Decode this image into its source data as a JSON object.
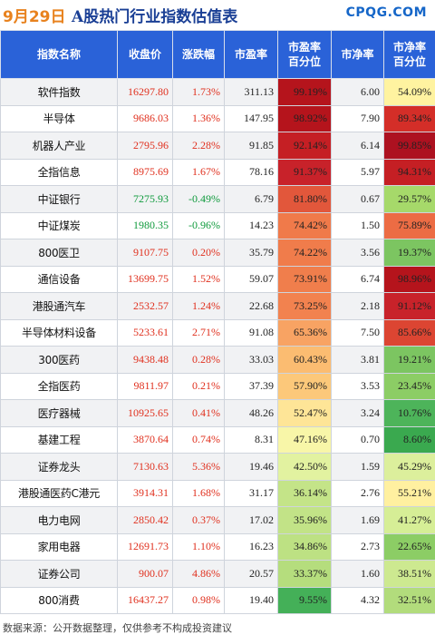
{
  "header": {
    "date": "9月29日",
    "title": "A股热门行业指数估值表",
    "brand": "CPQG.COM"
  },
  "columns": [
    "指数名称",
    "收盘价",
    "涨跌幅",
    "市盈率",
    "市盈率\n百分位",
    "市净率",
    "市净率\n百分位"
  ],
  "colors": {
    "header_bg": "#2a62d8",
    "up": "#e0301e",
    "down": "#0f9a3c",
    "neutral": "#222222"
  },
  "rows": [
    {
      "name": "软件指数",
      "close": "16297.80",
      "change": "1.73%",
      "dir": "up",
      "pe": "311.13",
      "pe_pct": "99.19%",
      "pb": "6.00",
      "pb_pct": "54.09%",
      "pe_color": "#b5141c",
      "pb_color": "#fff3a0"
    },
    {
      "name": "半导体",
      "close": "9686.03",
      "change": "1.36%",
      "dir": "up",
      "pe": "147.95",
      "pe_pct": "98.92%",
      "pb": "7.90",
      "pb_pct": "89.34%",
      "pe_color": "#b5141c",
      "pb_color": "#d42e28"
    },
    {
      "name": "机器人产业",
      "close": "2795.96",
      "change": "2.28%",
      "dir": "up",
      "pe": "91.85",
      "pe_pct": "92.14%",
      "pb": "6.14",
      "pb_pct": "99.85%",
      "pe_color": "#c51f24",
      "pb_color": "#ad1120"
    },
    {
      "name": "全指信息",
      "close": "8975.69",
      "change": "1.67%",
      "dir": "up",
      "pe": "78.16",
      "pe_pct": "91.37%",
      "pb": "5.97",
      "pb_pct": "94.31%",
      "pe_color": "#c8222a",
      "pb_color": "#c51f24"
    },
    {
      "name": "中证银行",
      "close": "7275.93",
      "change": "-0.49%",
      "dir": "down",
      "pe": "6.79",
      "pe_pct": "81.80%",
      "pb": "0.67",
      "pb_pct": "29.57%",
      "pe_color": "#e2573b",
      "pb_color": "#a6d96a"
    },
    {
      "name": "中证煤炭",
      "close": "1980.35",
      "change": "-0.96%",
      "dir": "down",
      "pe": "14.23",
      "pe_pct": "74.42%",
      "pb": "1.50",
      "pb_pct": "75.89%",
      "pe_color": "#f07a4a",
      "pb_color": "#ec6c44"
    },
    {
      "name": "800医卫",
      "close": "9107.75",
      "change": "0.20%",
      "dir": "up",
      "pe": "35.79",
      "pe_pct": "74.22%",
      "pb": "3.56",
      "pb_pct": "19.37%",
      "pe_color": "#f07c4b",
      "pb_color": "#7cc561"
    },
    {
      "name": "通信设备",
      "close": "13699.75",
      "change": "1.52%",
      "dir": "up",
      "pe": "59.07",
      "pe_pct": "73.91%",
      "pb": "6.74",
      "pb_pct": "98.96%",
      "pe_color": "#f07e4c",
      "pb_color": "#b5141c"
    },
    {
      "name": "港股通汽车",
      "close": "2532.57",
      "change": "1.24%",
      "dir": "up",
      "pe": "22.68",
      "pe_pct": "73.25%",
      "pb": "2.18",
      "pb_pct": "91.12%",
      "pe_color": "#f2824f",
      "pb_color": "#c8222a"
    },
    {
      "name": "半导体材料设备",
      "close": "5233.61",
      "change": "2.71%",
      "dir": "up",
      "pe": "91.08",
      "pe_pct": "65.36%",
      "pb": "7.50",
      "pb_pct": "85.66%",
      "pe_color": "#f8a363",
      "pb_color": "#dc4532"
    },
    {
      "name": "300医药",
      "close": "9438.48",
      "change": "0.28%",
      "dir": "up",
      "pe": "33.03",
      "pe_pct": "60.43%",
      "pb": "3.81",
      "pb_pct": "19.21%",
      "pe_color": "#fbbc71",
      "pb_color": "#7cc561"
    },
    {
      "name": "全指医药",
      "close": "9811.97",
      "change": "0.21%",
      "dir": "up",
      "pe": "37.39",
      "pe_pct": "57.90%",
      "pb": "3.53",
      "pb_pct": "23.45%",
      "pe_color": "#fcc87a",
      "pb_color": "#8ccd65"
    },
    {
      "name": "医疗器械",
      "close": "10925.65",
      "change": "0.41%",
      "dir": "up",
      "pe": "48.26",
      "pe_pct": "52.47%",
      "pb": "3.24",
      "pb_pct": "10.76%",
      "pe_color": "#fee597",
      "pb_color": "#4db45a"
    },
    {
      "name": "基建工程",
      "close": "3870.64",
      "change": "0.74%",
      "dir": "up",
      "pe": "8.31",
      "pe_pct": "47.16%",
      "pb": "0.70",
      "pb_pct": "8.60%",
      "pe_color": "#f8f6a8",
      "pb_color": "#3aa94f"
    },
    {
      "name": "证券龙头",
      "close": "7130.63",
      "change": "5.36%",
      "dir": "up",
      "pe": "19.46",
      "pe_pct": "42.50%",
      "pb": "1.59",
      "pb_pct": "45.29%",
      "pe_color": "#e2f2a0",
      "pb_color": "#dcef9c"
    },
    {
      "name": "港股通医药C港元",
      "close": "3914.31",
      "change": "1.68%",
      "dir": "up",
      "pe": "31.17",
      "pe_pct": "36.14%",
      "pb": "2.76",
      "pb_pct": "55.21%",
      "pe_color": "#c4e488",
      "pb_color": "#fff0a0"
    },
    {
      "name": "电力电网",
      "close": "2850.42",
      "change": "0.37%",
      "dir": "up",
      "pe": "17.02",
      "pe_pct": "35.96%",
      "pb": "1.69",
      "pb_pct": "41.27%",
      "pe_color": "#c2e387",
      "pb_color": "#d6ee96"
    },
    {
      "name": "家用电器",
      "close": "12691.73",
      "change": "1.10%",
      "dir": "up",
      "pe": "16.23",
      "pe_pct": "34.86%",
      "pb": "2.73",
      "pb_pct": "22.65%",
      "pe_color": "#bde183",
      "pb_color": "#8ccd65"
    },
    {
      "name": "证券公司",
      "close": "900.07",
      "change": "4.86%",
      "dir": "up",
      "pe": "20.57",
      "pe_pct": "33.37%",
      "pb": "1.60",
      "pb_pct": "38.51%",
      "pe_color": "#b5dd7d",
      "pb_color": "#cde990"
    },
    {
      "name": "800消费",
      "close": "16437.27",
      "change": "0.98%",
      "dir": "up",
      "pe": "19.40",
      "pe_pct": "9.55%",
      "pb": "4.32",
      "pb_pct": "32.51%",
      "pe_color": "#44b058",
      "pb_color": "#b2dc7c"
    }
  ],
  "footer": "数据来源：公开数据整理，仅供参考不构成投资建议"
}
